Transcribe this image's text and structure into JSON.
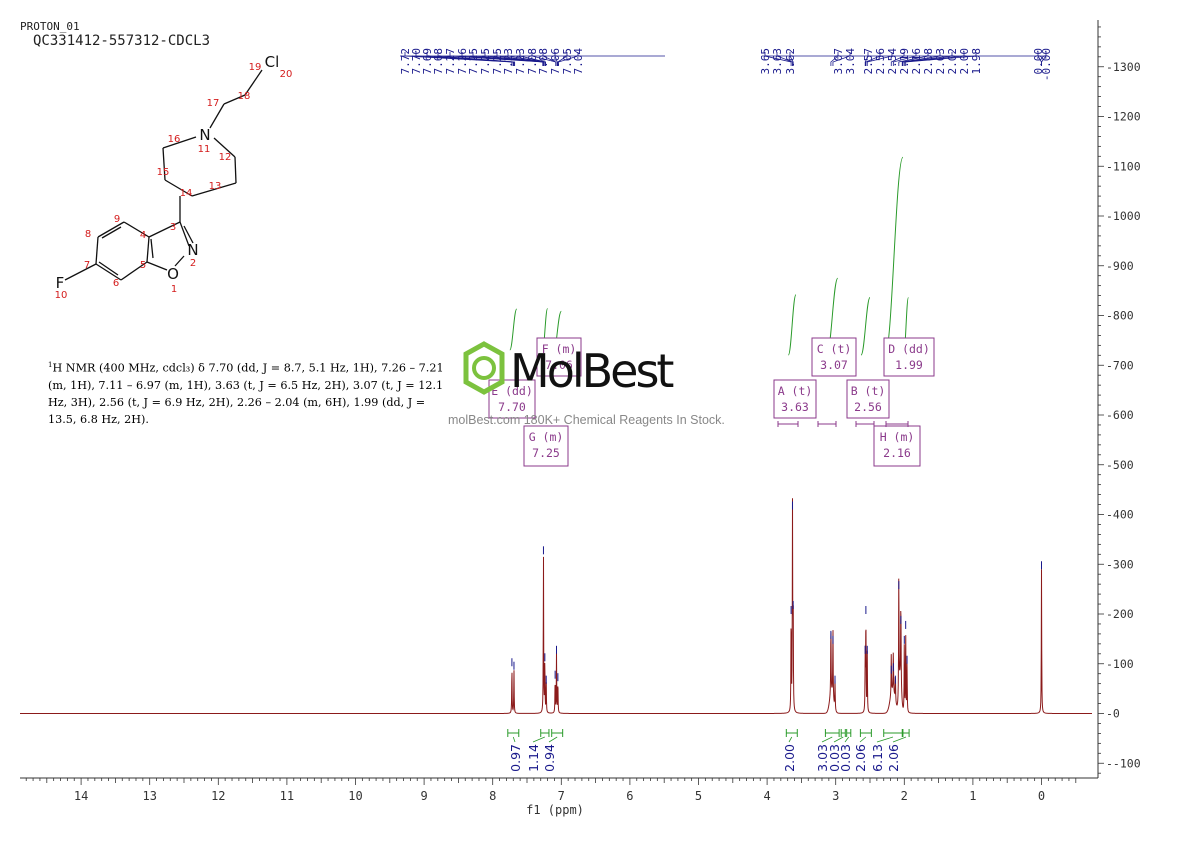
{
  "header": {
    "experiment": "PROTON_01",
    "sample": "QC331412-557312-CDCL3"
  },
  "structure": {
    "atom_numbers": [
      "1",
      "2",
      "3",
      "4",
      "5",
      "6",
      "7",
      "8",
      "9",
      "10",
      "11",
      "12",
      "13",
      "14",
      "15",
      "16",
      "17",
      "18",
      "19",
      "20"
    ],
    "heteroatoms": {
      "N_ring": "N",
      "N_isox": "N",
      "O": "O",
      "F": "F",
      "Cl": "Cl"
    }
  },
  "description": {
    "nucleus": "1",
    "text": "H NMR (400 MHz, cdcl₃) δ 7.70 (dd, J = 8.7, 5.1 Hz, 1H), 7.26 – 7.21 (m, 1H), 7.11 – 6.97 (m, 1H), 3.63 (t, J = 6.5 Hz, 2H), 3.07 (t, J = 12.1 Hz, 3H), 2.56 (t, J = 6.9 Hz, 2H), 2.26 – 2.04 (m, 6H), 1.99 (dd, J = 13.5, 6.8 Hz, 2H)."
  },
  "watermark": {
    "brand": "MolBest",
    "tagline": "molBest.com 180K+ Chemical Reagents In Stock."
  },
  "chart_data": {
    "type": "line",
    "xlabel": "f1 (ppm)",
    "ylabel": "",
    "xlim": [
      14.8,
      -0.75
    ],
    "ylim": [
      -130,
      1390
    ],
    "x_ticks": [
      "14",
      "13",
      "12",
      "11",
      "10",
      "9",
      "8",
      "7",
      "6",
      "5",
      "4",
      "3",
      "2",
      "1",
      "0"
    ],
    "y_ticks": [
      "1300",
      "1200",
      "1100",
      "1000",
      "900",
      "800",
      "700",
      "600",
      "500",
      "400",
      "300",
      "200",
      "100",
      "0",
      "-100"
    ],
    "peaks": [
      {
        "ppm": 7.72,
        "height": 95
      },
      {
        "ppm": 7.69,
        "height": 88
      },
      {
        "ppm": 7.26,
        "height": 320
      },
      {
        "ppm": 7.24,
        "height": 105
      },
      {
        "ppm": 7.22,
        "height": 60
      },
      {
        "ppm": 7.09,
        "height": 70
      },
      {
        "ppm": 7.07,
        "height": 120
      },
      {
        "ppm": 7.05,
        "height": 65
      },
      {
        "ppm": 3.65,
        "height": 200
      },
      {
        "ppm": 3.63,
        "height": 410
      },
      {
        "ppm": 3.62,
        "height": 210
      },
      {
        "ppm": 3.07,
        "height": 150
      },
      {
        "ppm": 3.04,
        "height": 140
      },
      {
        "ppm": 3.01,
        "height": 60
      },
      {
        "ppm": 2.57,
        "height": 120
      },
      {
        "ppm": 2.56,
        "height": 200
      },
      {
        "ppm": 2.54,
        "height": 120
      },
      {
        "ppm": 2.19,
        "height": 80
      },
      {
        "ppm": 2.16,
        "height": 85
      },
      {
        "ppm": 2.13,
        "height": 60
      },
      {
        "ppm": 2.08,
        "height": 250
      },
      {
        "ppm": 2.05,
        "height": 180
      },
      {
        "ppm": 2.0,
        "height": 140
      },
      {
        "ppm": 1.98,
        "height": 170
      },
      {
        "ppm": 1.96,
        "height": 100
      },
      {
        "ppm": 0.0,
        "height": 290
      }
    ],
    "peak_labels": [
      "7.72",
      "7.70",
      "7.69",
      "7.68",
      "7.27",
      "7.26",
      "7.25",
      "7.25",
      "7.25",
      "7.23",
      "7.23",
      "7.08",
      "7.08",
      "7.06",
      "7.05",
      "7.04",
      "3.65",
      "3.63",
      "3.62",
      "3.07",
      "3.04",
      "2.57",
      "2.56",
      "2.54",
      "2.19",
      "2.16",
      "2.08",
      "2.03",
      "2.02",
      "2.00",
      "1.98",
      "0.00",
      "-0.00"
    ],
    "integrals": [
      {
        "from": 7.78,
        "to": 7.62,
        "value": "0.97"
      },
      {
        "from": 7.3,
        "to": 7.18,
        "value": "1.14"
      },
      {
        "from": 7.14,
        "to": 6.98,
        "value": "0.94"
      },
      {
        "from": 3.72,
        "to": 3.56,
        "value": "2.00"
      },
      {
        "from": 3.15,
        "to": 2.95,
        "value": "3.03"
      },
      {
        "from": 2.92,
        "to": 2.86,
        "value": "0.03"
      },
      {
        "from": 2.84,
        "to": 2.78,
        "value": "0.03"
      },
      {
        "from": 2.64,
        "to": 2.48,
        "value": "2.06"
      },
      {
        "from": 2.3,
        "to": 2.03,
        "value": "6.13"
      },
      {
        "from": 2.02,
        "to": 1.93,
        "value": "2.06"
      }
    ],
    "multiplets": [
      {
        "name": "A (t)",
        "shift": "3.63"
      },
      {
        "name": "B (t)",
        "shift": "2.56"
      },
      {
        "name": "C (t)",
        "shift": "3.07"
      },
      {
        "name": "D (dd)",
        "shift": "1.99"
      },
      {
        "name": "E (dd)",
        "shift": "7.70"
      },
      {
        "name": "F (m)",
        "shift": "7.06"
      },
      {
        "name": "G (m)",
        "shift": "7.25"
      },
      {
        "name": "H (m)",
        "shift": "2.16"
      }
    ],
    "colors": {
      "spectrum": "#8b1a1a",
      "peak_labels": "#1a1a8c",
      "integral": "#2a9a2a",
      "multiplet_box": "#8b3a8b",
      "axis": "#333333"
    }
  }
}
